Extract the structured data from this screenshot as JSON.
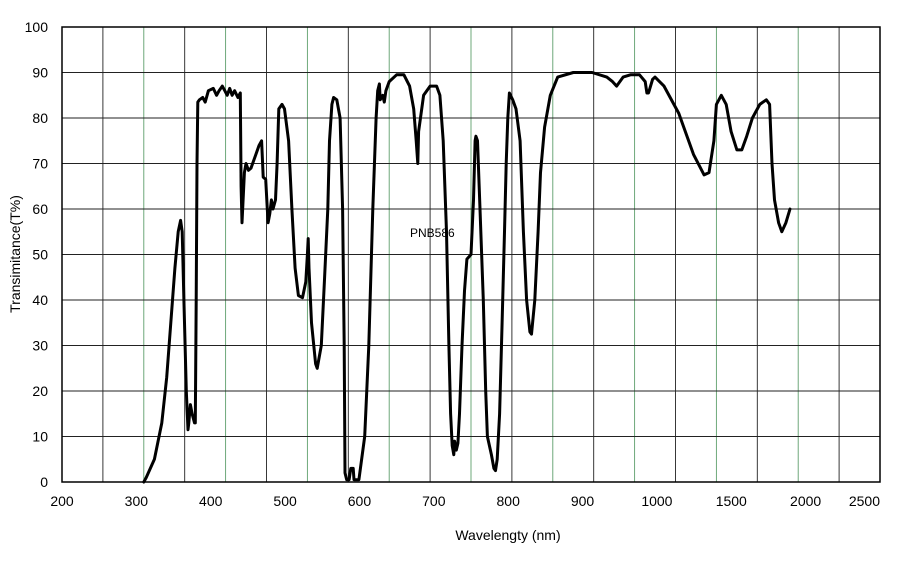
{
  "chart_data": {
    "type": "line",
    "title": "",
    "xlabel": "Wavelengty (nm)",
    "ylabel": "Transimitance(T%)",
    "x_scale": "piecewise: 200-1000 nm linear, 1000-2500 nm compressed",
    "xlim": [
      200,
      2500
    ],
    "ylim": [
      0,
      100
    ],
    "x_tick_labels": [
      "200",
      "300",
      "400",
      "500",
      "600",
      "700",
      "800",
      "900",
      "1000",
      "1500",
      "2000",
      "2500"
    ],
    "y_tick_labels": [
      "0",
      "10",
      "20",
      "30",
      "40",
      "50",
      "60",
      "70",
      "80",
      "90",
      "100"
    ],
    "grid": true,
    "annotation": "PNB586",
    "series": [
      {
        "points": [
          [
            300,
            0
          ],
          [
            303,
            1
          ],
          [
            313,
            5
          ],
          [
            322,
            13
          ],
          [
            328,
            23
          ],
          [
            333,
            35
          ],
          [
            338,
            47
          ],
          [
            342,
            55
          ],
          [
            345,
            57.5
          ],
          [
            347,
            55
          ],
          [
            349,
            40
          ],
          [
            352,
            20
          ],
          [
            354,
            11.5
          ],
          [
            355,
            13
          ],
          [
            357,
            17
          ],
          [
            359,
            15
          ],
          [
            362,
            13
          ],
          [
            363,
            13
          ],
          [
            364,
            40
          ],
          [
            365,
            70
          ],
          [
            366,
            83.5
          ],
          [
            368,
            84
          ],
          [
            372,
            84.5
          ],
          [
            375,
            83.5
          ],
          [
            379,
            86
          ],
          [
            385,
            86.5
          ],
          [
            389,
            85
          ],
          [
            392,
            86
          ],
          [
            396,
            87
          ],
          [
            399,
            86
          ],
          [
            402,
            85
          ],
          [
            405,
            86.5
          ],
          [
            408,
            85
          ],
          [
            411,
            86
          ],
          [
            415,
            84.5
          ],
          [
            418,
            85.5
          ],
          [
            419,
            65
          ],
          [
            420,
            57
          ],
          [
            423,
            68
          ],
          [
            425,
            70
          ],
          [
            428,
            68.5
          ],
          [
            431,
            69
          ],
          [
            437,
            72
          ],
          [
            441,
            74
          ],
          [
            444,
            75
          ],
          [
            446,
            67
          ],
          [
            449,
            66.5
          ],
          [
            451,
            60
          ],
          [
            452,
            57
          ],
          [
            454,
            59
          ],
          [
            456,
            62
          ],
          [
            458,
            60
          ],
          [
            461,
            62
          ],
          [
            463,
            70
          ],
          [
            465,
            82
          ],
          [
            469,
            83
          ],
          [
            472,
            82
          ],
          [
            477,
            75
          ],
          [
            481,
            60
          ],
          [
            485,
            47
          ],
          [
            489,
            41
          ],
          [
            494,
            40.5
          ],
          [
            498,
            44
          ],
          [
            500,
            50
          ],
          [
            501,
            53.5
          ],
          [
            502,
            47
          ],
          [
            505,
            35
          ],
          [
            510,
            26
          ],
          [
            512,
            25
          ],
          [
            517,
            30
          ],
          [
            521,
            45
          ],
          [
            525,
            60
          ],
          [
            527,
            75
          ],
          [
            530,
            83
          ],
          [
            532,
            84.5
          ],
          [
            536,
            84
          ],
          [
            540,
            80
          ],
          [
            543,
            60
          ],
          [
            545,
            30
          ],
          [
            546,
            2
          ],
          [
            548,
            0.5
          ],
          [
            551,
            0.5
          ],
          [
            553,
            3
          ],
          [
            556,
            3
          ],
          [
            557,
            0.5
          ],
          [
            563,
            0.5
          ],
          [
            570,
            10
          ],
          [
            575,
            30
          ],
          [
            580,
            60
          ],
          [
            584,
            80
          ],
          [
            586,
            86
          ],
          [
            588,
            87.5
          ],
          [
            589,
            84
          ],
          [
            592,
            85
          ],
          [
            594,
            83.5
          ],
          [
            596,
            86
          ],
          [
            600,
            88
          ],
          [
            609,
            89.5
          ],
          [
            618,
            89.5
          ],
          [
            625,
            87
          ],
          [
            630,
            82
          ],
          [
            633,
            75
          ],
          [
            635,
            70
          ],
          [
            636,
            77
          ],
          [
            642,
            85
          ],
          [
            650,
            87
          ],
          [
            658,
            87
          ],
          [
            662,
            85
          ],
          [
            666,
            75
          ],
          [
            670,
            55
          ],
          [
            673,
            30
          ],
          [
            675,
            15
          ],
          [
            677,
            8
          ],
          [
            679,
            6
          ],
          [
            680,
            9
          ],
          [
            682,
            7
          ],
          [
            684,
            8.5
          ],
          [
            686,
            15
          ],
          [
            689,
            30
          ],
          [
            692,
            42
          ],
          [
            695,
            49
          ],
          [
            700,
            50
          ],
          [
            703,
            62
          ],
          [
            705,
            75
          ],
          [
            706,
            76
          ],
          [
            708,
            75
          ],
          [
            711,
            60
          ],
          [
            715,
            40
          ],
          [
            718,
            20
          ],
          [
            720,
            10
          ],
          [
            725,
            6
          ],
          [
            728,
            3
          ],
          [
            730,
            2.5
          ],
          [
            732,
            5
          ],
          [
            735,
            15
          ],
          [
            738,
            35
          ],
          [
            741,
            55
          ],
          [
            743,
            70
          ],
          [
            745,
            80
          ],
          [
            747,
            85.5
          ],
          [
            751,
            84
          ],
          [
            755,
            82
          ],
          [
            760,
            75
          ],
          [
            764,
            55
          ],
          [
            768,
            40
          ],
          [
            772,
            33
          ],
          [
            774,
            32.5
          ],
          [
            778,
            40
          ],
          [
            782,
            55
          ],
          [
            785,
            68
          ],
          [
            790,
            78
          ],
          [
            797,
            85
          ],
          [
            806,
            89
          ],
          [
            825,
            90
          ],
          [
            848,
            90
          ],
          [
            866,
            89
          ],
          [
            873,
            88
          ],
          [
            878,
            87
          ],
          [
            886,
            89
          ],
          [
            895,
            89.5
          ],
          [
            906,
            89.5
          ],
          [
            913,
            88
          ],
          [
            915,
            85.5
          ],
          [
            917,
            85.5
          ],
          [
            922,
            88.5
          ],
          [
            925,
            89
          ],
          [
            936,
            87
          ],
          [
            954,
            81
          ],
          [
            972,
            72
          ],
          [
            985,
            67.5
          ],
          [
            991,
            68
          ],
          [
            997,
            75
          ],
          [
            1000,
            83
          ],
          [
            1006,
            85
          ],
          [
            1012,
            83
          ],
          [
            1018,
            77
          ],
          [
            1025,
            73
          ],
          [
            1031,
            73
          ],
          [
            1037,
            76
          ],
          [
            1044,
            80
          ],
          [
            1053,
            83
          ],
          [
            1061,
            84
          ],
          [
            1065,
            83
          ],
          [
            1068,
            70
          ],
          [
            1071,
            62
          ],
          [
            1076,
            57
          ],
          [
            1080,
            55
          ],
          [
            1085,
            57
          ],
          [
            1090,
            60
          ]
        ]
      }
    ]
  }
}
